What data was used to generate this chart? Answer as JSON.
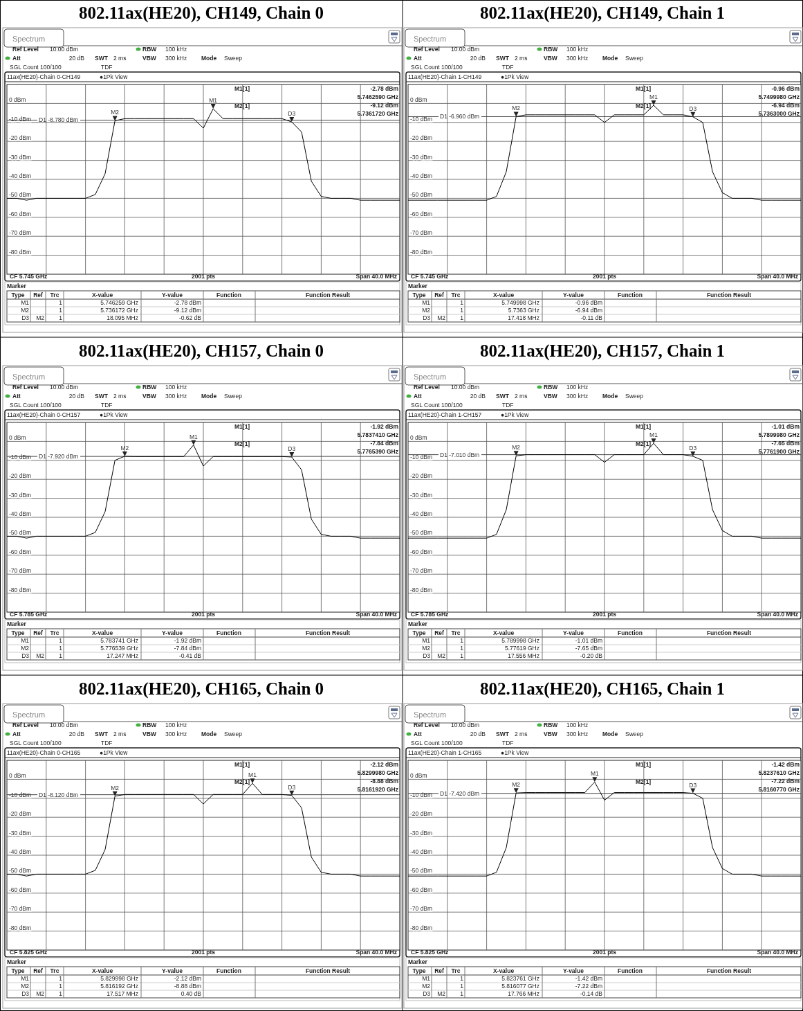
{
  "chart_data": [
    {
      "type": "line",
      "title": "802.11ax(HE20), CH149, Chain 0",
      "grid": true,
      "tick_labels": "y",
      "categories": [
        null,
        null,
        null,
        null,
        null,
        null,
        null,
        null,
        null,
        null,
        null,
        null,
        null,
        null,
        null,
        null,
        null,
        null,
        null,
        null,
        null,
        null,
        null,
        null,
        null,
        null,
        null,
        null,
        null,
        null,
        null,
        null,
        null,
        null,
        null,
        null,
        null,
        null,
        null,
        null,
        null
      ],
      "ylim": [
        -90,
        10
      ],
      "yticks": [
        {
          "value": 0,
          "label": "0 dBm"
        },
        {
          "value": -10,
          "label": "-10 dBm"
        },
        {
          "value": -20,
          "label": "-20 dBm"
        },
        {
          "value": -30,
          "label": "-30 dBm"
        },
        {
          "value": -40,
          "label": "-40 dBm"
        },
        {
          "value": -50,
          "label": "-50 dBm"
        },
        {
          "value": -60,
          "label": "-60 dBm"
        },
        {
          "value": -70,
          "label": "-70 dBm"
        },
        {
          "value": -80,
          "label": "-80 dBm"
        }
      ],
      "series": [
        {
          "color": "#000000",
          "values": [
            -50,
            -50,
            -51,
            -50,
            -50,
            -50,
            -50,
            -50,
            -50,
            -48,
            -37,
            -9.12,
            -8,
            -8,
            -8,
            -8,
            -8,
            -8,
            -8,
            -8,
            -13,
            -2.78,
            -8,
            -8,
            -8,
            -8,
            -8,
            -8,
            -8,
            -9.74,
            -15,
            -41,
            -49,
            -50,
            -50,
            -50,
            -51,
            -51,
            -51,
            -51,
            -51
          ]
        }
      ],
      "ref_lines": [
        {
          "axis": "y",
          "value": -8.78,
          "label": "D1 -8.780 dBm"
        }
      ],
      "annotations": [
        "Spectrum",
        "Ref Level",
        "10.00 dBm",
        "Att",
        "20 dB",
        "SWT",
        "2 ms",
        "RBW",
        "100 kHz",
        "VBW",
        "300 kHz",
        "Mode",
        "Sweep",
        "SGL Count 100/100",
        "TDF",
        "11ax(HE20)-Chain 0-CH149",
        "●1Pk View",
        "M1[1]",
        "-2.78 dBm",
        "5.7462590 GHz",
        "M2[1]",
        "-9.12 dBm",
        "5.7361720 GHz",
        "CF 5.745 GHz",
        "2001 pts",
        "Span 40.0 MHz",
        "Marker",
        "Type",
        "Ref",
        "Trc",
        "X-value",
        "Y-value",
        "Function",
        "Function Result",
        "M1",
        "1",
        "5.746259 GHz",
        "-2.78 dBm",
        "M2",
        "1",
        "5.736172 GHz",
        "-9.12 dBm",
        "D3",
        "M2",
        "1",
        "18.095 MHz",
        "-0.62 dB",
        {
          "text": "M1",
          "y": -2.78
        },
        {
          "text": "M2",
          "y": -9.12
        },
        {
          "text": "D3",
          "y": -9.74
        }
      ]
    },
    {
      "type": "line",
      "title": "802.11ax(HE20), CH149, Chain 1",
      "grid": true,
      "tick_labels": "y",
      "categories": [
        null,
        null,
        null,
        null,
        null,
        null,
        null,
        null,
        null,
        null,
        null,
        null,
        null,
        null,
        null,
        null,
        null,
        null,
        null,
        null,
        null,
        null,
        null,
        null,
        null,
        null,
        null,
        null,
        null,
        null,
        null,
        null,
        null,
        null,
        null,
        null,
        null,
        null,
        null,
        null,
        null
      ],
      "ylim": [
        -90,
        10
      ],
      "yticks": [
        {
          "value": 0,
          "label": "0 dBm"
        },
        {
          "value": -10,
          "label": "-10 dBm"
        },
        {
          "value": -20,
          "label": "-20 dBm"
        },
        {
          "value": -30,
          "label": "-30 dBm"
        },
        {
          "value": -40,
          "label": "-40 dBm"
        },
        {
          "value": -50,
          "label": "-50 dBm"
        },
        {
          "value": -60,
          "label": "-60 dBm"
        },
        {
          "value": -70,
          "label": "-70 dBm"
        },
        {
          "value": -80,
          "label": "-80 dBm"
        }
      ],
      "series": [
        {
          "color": "#000000",
          "values": [
            -51,
            -51,
            -51,
            -51,
            -51,
            -51,
            -51,
            -51,
            -51,
            -49,
            -36,
            -6.94,
            -6,
            -6,
            -6,
            -6,
            -6,
            -6,
            -6,
            -6,
            -10,
            -6,
            -6,
            -6,
            -6,
            -0.96,
            -6,
            -6,
            -6,
            -7.05,
            -10,
            -36,
            -47,
            -50,
            -50,
            -50,
            -51,
            -51,
            -51,
            -51,
            -51
          ]
        }
      ],
      "ref_lines": [
        {
          "axis": "y",
          "value": -6.96,
          "label": "D1 -6.960 dBm"
        }
      ],
      "annotations": [
        "Spectrum",
        "Ref Level",
        "10.00 dBm",
        "Att",
        "20 dB",
        "SWT",
        "2 ms",
        "RBW",
        "100 kHz",
        "VBW",
        "300 kHz",
        "Mode",
        "Sweep",
        "SGL Count 100/100",
        "TDF",
        "11ax(HE20)-Chain 1-CH149",
        "●1Pk View",
        "M1[1]",
        "-0.96 dBm",
        "5.7499980 GHz",
        "M2[1]",
        "-6.94 dBm",
        "5.7363000 GHz",
        "CF 5.745 GHz",
        "2001 pts",
        "Span 40.0 MHz",
        "Marker",
        "Type",
        "Ref",
        "Trc",
        "X-value",
        "Y-value",
        "Function",
        "Function Result",
        "M1",
        "1",
        "5.749998 GHz",
        "-0.96 dBm",
        "M2",
        "1",
        "5.7363 GHz",
        "-6.94 dBm",
        "D3",
        "M2",
        "1",
        "17.418 MHz",
        "-0.11 dB",
        {
          "text": "M1",
          "y": -0.96
        },
        {
          "text": "M2",
          "y": -6.94
        },
        {
          "text": "D3",
          "y": -7.05
        }
      ]
    },
    {
      "type": "line",
      "title": "802.11ax(HE20), CH157, Chain 0",
      "grid": true,
      "tick_labels": "y",
      "categories": [
        null,
        null,
        null,
        null,
        null,
        null,
        null,
        null,
        null,
        null,
        null,
        null,
        null,
        null,
        null,
        null,
        null,
        null,
        null,
        null,
        null,
        null,
        null,
        null,
        null,
        null,
        null,
        null,
        null,
        null,
        null,
        null,
        null,
        null,
        null,
        null,
        null,
        null,
        null,
        null,
        null
      ],
      "ylim": [
        -90,
        10
      ],
      "yticks": [
        {
          "value": 0,
          "label": "0 dBm"
        },
        {
          "value": -10,
          "label": "-10 dBm"
        },
        {
          "value": -20,
          "label": "-20 dBm"
        },
        {
          "value": -30,
          "label": "-30 dBm"
        },
        {
          "value": -40,
          "label": "-40 dBm"
        },
        {
          "value": -50,
          "label": "-50 dBm"
        },
        {
          "value": -60,
          "label": "-60 dBm"
        },
        {
          "value": -70,
          "label": "-70 dBm"
        },
        {
          "value": -80,
          "label": "-80 dBm"
        }
      ],
      "series": [
        {
          "color": "#000000",
          "values": [
            -50,
            -50,
            -51,
            -50,
            -50,
            -50,
            -50,
            -50,
            -50,
            -48,
            -37,
            -10,
            -7.84,
            -8,
            -8,
            -8,
            -8,
            -8,
            -8,
            -1.92,
            -13,
            -8,
            -8,
            -8,
            -8,
            -8,
            -8,
            -8,
            -8,
            -8.25,
            -15,
            -41,
            -49,
            -50,
            -50,
            -50,
            -51,
            -51,
            -51,
            -51,
            -51
          ]
        }
      ],
      "ref_lines": [
        {
          "axis": "y",
          "value": -7.92,
          "label": "D1 -7.920 dBm"
        }
      ],
      "annotations": [
        "Spectrum",
        "Ref Level",
        "10.00 dBm",
        "Att",
        "20 dB",
        "SWT",
        "2 ms",
        "RBW",
        "100 kHz",
        "VBW",
        "300 kHz",
        "Mode",
        "Sweep",
        "SGL Count 100/100",
        "TDF",
        "11ax(HE20)-Chain 0-CH157",
        "●1Pk View",
        "M1[1]",
        "-1.92 dBm",
        "5.7837410 GHz",
        "M2[1]",
        "-7.84 dBm",
        "5.7765390 GHz",
        "CF 5.785 GHz",
        "2001 pts",
        "Span 40.0 MHz",
        "Marker",
        "Type",
        "Ref",
        "Trc",
        "X-value",
        "Y-value",
        "Function",
        "Function Result",
        "M1",
        "1",
        "5.783741 GHz",
        "-1.92 dBm",
        "M2",
        "1",
        "5.776539 GHz",
        "-7.84 dBm",
        "D3",
        "M2",
        "1",
        "17.247 MHz",
        "-0.41 dB",
        {
          "text": "M1",
          "y": -1.92
        },
        {
          "text": "M2",
          "y": -7.84
        },
        {
          "text": "D3",
          "y": -8.25
        }
      ]
    },
    {
      "type": "line",
      "title": "802.11ax(HE20), CH157, Chain 1",
      "grid": true,
      "tick_labels": "y",
      "categories": [
        null,
        null,
        null,
        null,
        null,
        null,
        null,
        null,
        null,
        null,
        null,
        null,
        null,
        null,
        null,
        null,
        null,
        null,
        null,
        null,
        null,
        null,
        null,
        null,
        null,
        null,
        null,
        null,
        null,
        null,
        null,
        null,
        null,
        null,
        null,
        null,
        null,
        null,
        null,
        null,
        null
      ],
      "ylim": [
        -90,
        10
      ],
      "yticks": [
        {
          "value": 0,
          "label": "0 dBm"
        },
        {
          "value": -10,
          "label": "-10 dBm"
        },
        {
          "value": -20,
          "label": "-20 dBm"
        },
        {
          "value": -30,
          "label": "-30 dBm"
        },
        {
          "value": -40,
          "label": "-40 dBm"
        },
        {
          "value": -50,
          "label": "-50 dBm"
        },
        {
          "value": -60,
          "label": "-60 dBm"
        },
        {
          "value": -70,
          "label": "-70 dBm"
        },
        {
          "value": -80,
          "label": "-80 dBm"
        }
      ],
      "series": [
        {
          "color": "#000000",
          "values": [
            -51,
            -51,
            -51,
            -51,
            -51,
            -51,
            -51,
            -51,
            -51,
            -49,
            -36,
            -7.65,
            -7,
            -7,
            -7,
            -7,
            -7,
            -7,
            -7,
            -7,
            -11,
            -7,
            -7,
            -7,
            -7,
            -1.01,
            -7,
            -7,
            -7,
            -7.85,
            -10,
            -36,
            -47,
            -50,
            -50,
            -50,
            -51,
            -51,
            -51,
            -51,
            -51
          ]
        }
      ],
      "ref_lines": [
        {
          "axis": "y",
          "value": -7.01,
          "label": "D1 -7.010 dBm"
        }
      ],
      "annotations": [
        "Spectrum",
        "Ref Level",
        "10.00 dBm",
        "Att",
        "20 dB",
        "SWT",
        "2 ms",
        "RBW",
        "100 kHz",
        "VBW",
        "300 kHz",
        "Mode",
        "Sweep",
        "SGL Count 100/100",
        "TDF",
        "11ax(HE20)-Chain 1-CH157",
        "●1Pk View",
        "M1[1]",
        "-1.01 dBm",
        "5.7899980 GHz",
        "M2[1]",
        "-7.65 dBm",
        "5.7761900 GHz",
        "CF 5.785 GHz",
        "2001 pts",
        "Span 40.0 MHz",
        "Marker",
        "Type",
        "Ref",
        "Trc",
        "X-value",
        "Y-value",
        "Function",
        "Function Result",
        "M1",
        "1",
        "5.789998 GHz",
        "-1.01 dBm",
        "M2",
        "1",
        "5.77619 GHz",
        "-7.65 dBm",
        "D3",
        "M2",
        "1",
        "17.556 MHz",
        "-0.20 dB",
        {
          "text": "M1",
          "y": -1.01
        },
        {
          "text": "M2",
          "y": -7.65
        },
        {
          "text": "D3",
          "y": -7.85
        }
      ]
    },
    {
      "type": "line",
      "title": "802.11ax(HE20), CH165, Chain 0",
      "grid": true,
      "tick_labels": "y",
      "categories": [
        null,
        null,
        null,
        null,
        null,
        null,
        null,
        null,
        null,
        null,
        null,
        null,
        null,
        null,
        null,
        null,
        null,
        null,
        null,
        null,
        null,
        null,
        null,
        null,
        null,
        null,
        null,
        null,
        null,
        null,
        null,
        null,
        null,
        null,
        null,
        null,
        null,
        null,
        null,
        null,
        null
      ],
      "ylim": [
        -90,
        10
      ],
      "yticks": [
        {
          "value": 0,
          "label": "0 dBm"
        },
        {
          "value": -10,
          "label": "-10 dBm"
        },
        {
          "value": -20,
          "label": "-20 dBm"
        },
        {
          "value": -30,
          "label": "-30 dBm"
        },
        {
          "value": -40,
          "label": "-40 dBm"
        },
        {
          "value": -50,
          "label": "-50 dBm"
        },
        {
          "value": -60,
          "label": "-60 dBm"
        },
        {
          "value": -70,
          "label": "-70 dBm"
        },
        {
          "value": -80,
          "label": "-80 dBm"
        }
      ],
      "series": [
        {
          "color": "#000000",
          "values": [
            -50,
            -50,
            -51,
            -50,
            -50,
            -50,
            -50,
            -50,
            -50,
            -48,
            -37,
            -8.88,
            -8,
            -8,
            -8,
            -8,
            -8,
            -8,
            -8,
            -8,
            -13,
            -8,
            -8,
            -8,
            -8,
            -2.12,
            -8,
            -8,
            -8,
            -8.48,
            -15,
            -41,
            -49,
            -50,
            -50,
            -50,
            -51,
            -51,
            -51,
            -51,
            -51
          ]
        }
      ],
      "ref_lines": [
        {
          "axis": "y",
          "value": -8.12,
          "label": "D1 -8.120 dBm"
        }
      ],
      "annotations": [
        "Spectrum",
        "Ref Level",
        "10.00 dBm",
        "Att",
        "20 dB",
        "SWT",
        "2 ms",
        "RBW",
        "100 kHz",
        "VBW",
        "300 kHz",
        "Mode",
        "Sweep",
        "SGL Count 100/100",
        "TDF",
        "11ax(HE20)-Chain 0-CH165",
        "●1Pk View",
        "M1[1]",
        "-2.12 dBm",
        "5.8299980 GHz",
        "M2[1]",
        "-8.88 dBm",
        "5.8161920 GHz",
        "CF 5.825 GHz",
        "2001 pts",
        "Span 40.0 MHz",
        "Marker",
        "Type",
        "Ref",
        "Trc",
        "X-value",
        "Y-value",
        "Function",
        "Function Result",
        "M1",
        "1",
        "5.829998 GHz",
        "-2.12 dBm",
        "M2",
        "1",
        "5.816192 GHz",
        "-8.88 dBm",
        "D3",
        "M2",
        "1",
        "17.517 MHz",
        "0.40 dB",
        {
          "text": "M1",
          "y": -2.12
        },
        {
          "text": "M2",
          "y": -8.88
        },
        {
          "text": "D3",
          "y": -8.48
        }
      ]
    },
    {
      "type": "line",
      "title": "802.11ax(HE20), CH165, Chain 1",
      "grid": true,
      "tick_labels": "y",
      "categories": [
        null,
        null,
        null,
        null,
        null,
        null,
        null,
        null,
        null,
        null,
        null,
        null,
        null,
        null,
        null,
        null,
        null,
        null,
        null,
        null,
        null,
        null,
        null,
        null,
        null,
        null,
        null,
        null,
        null,
        null,
        null,
        null,
        null,
        null,
        null,
        null,
        null,
        null,
        null,
        null,
        null
      ],
      "ylim": [
        -90,
        10
      ],
      "yticks": [
        {
          "value": 0,
          "label": "0 dBm"
        },
        {
          "value": -10,
          "label": "-10 dBm"
        },
        {
          "value": -20,
          "label": "-20 dBm"
        },
        {
          "value": -30,
          "label": "-30 dBm"
        },
        {
          "value": -40,
          "label": "-40 dBm"
        },
        {
          "value": -50,
          "label": "-50 dBm"
        },
        {
          "value": -60,
          "label": "-60 dBm"
        },
        {
          "value": -70,
          "label": "-70 dBm"
        },
        {
          "value": -80,
          "label": "-80 dBm"
        }
      ],
      "series": [
        {
          "color": "#000000",
          "values": [
            -51,
            -51,
            -51,
            -51,
            -51,
            -51,
            -51,
            -51,
            -51,
            -49,
            -36,
            -7.22,
            -7,
            -7,
            -7,
            -7,
            -7,
            -7,
            -7,
            -1.42,
            -11,
            -7,
            -7,
            -7,
            -7,
            -7,
            -7,
            -7,
            -7,
            -7.36,
            -10,
            -36,
            -47,
            -50,
            -50,
            -50,
            -51,
            -51,
            -51,
            -51,
            -51
          ]
        }
      ],
      "ref_lines": [
        {
          "axis": "y",
          "value": -7.42,
          "label": "D1 -7.420 dBm"
        }
      ],
      "annotations": [
        "Spectrum",
        "Ref Level",
        "10.00 dBm",
        "Att",
        "20 dB",
        "SWT",
        "2 ms",
        "RBW",
        "100 kHz",
        "VBW",
        "300 kHz",
        "Mode",
        "Sweep",
        "SGL Count 100/100",
        "TDF",
        "11ax(HE20)-Chain 1-CH165",
        "●1Pk View",
        "M1[1]",
        "-1.42 dBm",
        "5.8237610 GHz",
        "M2[1]",
        "-7.22 dBm",
        "5.8160770 GHz",
        "CF 5.825 GHz",
        "2001 pts",
        "Span 40.0 MHz",
        "Marker",
        "Type",
        "Ref",
        "Trc",
        "X-value",
        "Y-value",
        "Function",
        "Function Result",
        "M1",
        "1",
        "5.823761 GHz",
        "-1.42 dBm",
        "M2",
        "1",
        "5.816077 GHz",
        "-7.22 dBm",
        "D3",
        "M2",
        "1",
        "17.766 MHz",
        "-0.14 dB",
        {
          "text": "M1",
          "y": -1.42
        },
        {
          "text": "M2",
          "y": -7.22
        },
        {
          "text": "D3",
          "y": -7.36
        }
      ]
    }
  ]
}
